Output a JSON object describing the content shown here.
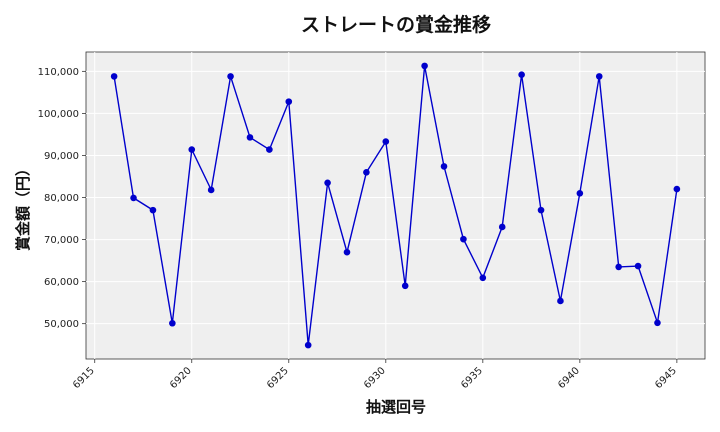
{
  "chart_data": {
    "type": "line",
    "title": "ストレートの賞金推移",
    "xlabel": "抽選回号",
    "ylabel": "賞金額（円）",
    "x": [
      6916,
      6917,
      6918,
      6919,
      6920,
      6921,
      6922,
      6923,
      6924,
      6925,
      6926,
      6927,
      6928,
      6929,
      6930,
      6931,
      6932,
      6933,
      6934,
      6935,
      6936,
      6937,
      6938,
      6939,
      6940,
      6941,
      6942,
      6943,
      6944,
      6945
    ],
    "series": [
      {
        "values": [
          108800,
          79900,
          77000,
          50100,
          91400,
          81800,
          108800,
          94300,
          91400,
          102800,
          44900,
          83500,
          67000,
          86000,
          93300,
          59000,
          111300,
          87400,
          70100,
          60900,
          73000,
          109200,
          77000,
          55400,
          81000,
          108800,
          63500,
          63700,
          50200,
          82000
        ],
        "color": "#0000cc"
      }
    ],
    "xticks": [
      "6915",
      "6920",
      "6925",
      "6930",
      "6935",
      "6940",
      "6945"
    ],
    "yticks": [
      "50,000",
      "60,000",
      "70,000",
      "80,000",
      "90,000",
      "100,000",
      "110,000"
    ],
    "xlim": [
      6914.55,
      6946.45
    ],
    "ylim": [
      41600,
      114600
    ],
    "grid": true,
    "plot_background": "#efefef",
    "grid_color": "#ffffff",
    "legend": "none"
  }
}
